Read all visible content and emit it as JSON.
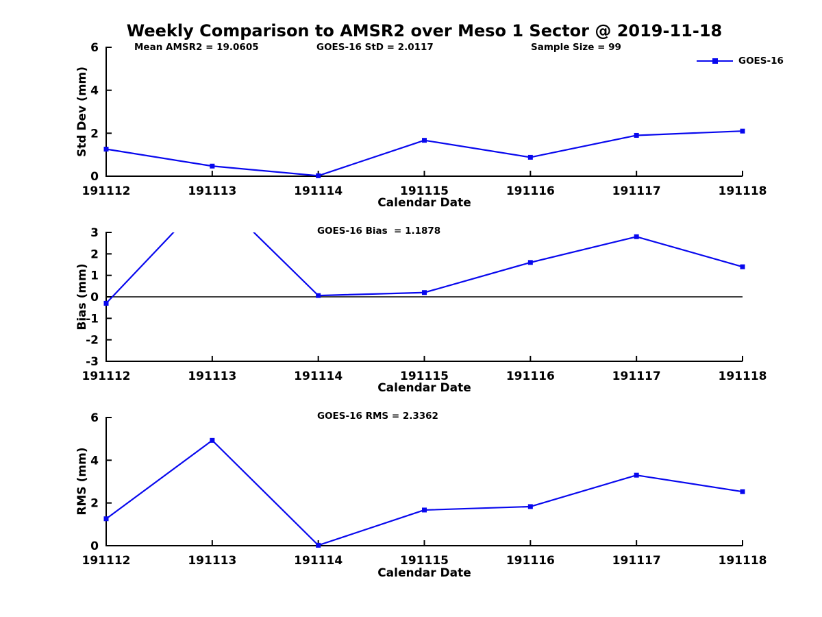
{
  "title": "Weekly Comparison to AMSR2 over Meso 1 Sector @ 2019-11-18",
  "legend": {
    "label": "GOES-16",
    "color": "#0808ee",
    "position": "top-right-inside"
  },
  "axis_color": "#000000",
  "chart_data": [
    {
      "type": "line",
      "name": "std-dev-panel",
      "annotations": [
        "Mean AMSR2 = 19.0605",
        "GOES-16 StD = 2.0117",
        "Sample Size = 99"
      ],
      "categories": [
        "191112",
        "191113",
        "191114",
        "191115",
        "191116",
        "191117",
        "191118"
      ],
      "series": [
        {
          "name": "GOES-16",
          "values": [
            1.26,
            0.47,
            0.02,
            1.67,
            0.88,
            1.9,
            2.1
          ]
        }
      ],
      "xlabel": "Calendar Date",
      "ylabel": "Std Dev (mm)",
      "ylim": [
        0,
        6
      ],
      "yticks": [
        0,
        2,
        4,
        6
      ],
      "grid": false,
      "zero_line": false,
      "marker": "square",
      "line_color": "#0808ee"
    },
    {
      "type": "line",
      "name": "bias-panel",
      "annotations": [
        "GOES-16 Bias  = 1.1878"
      ],
      "categories": [
        "191112",
        "191113",
        "191114",
        "191115",
        "191116",
        "191117",
        "191118"
      ],
      "series": [
        {
          "name": "GOES-16",
          "values": [
            -0.3,
            4.9,
            0.06,
            0.2,
            1.6,
            2.8,
            1.4
          ]
        }
      ],
      "note": "value at 191113 is off-scale high and the line is clipped at the top of the axes",
      "xlabel": "Calendar Date",
      "ylabel": "Bias (mm)",
      "ylim": [
        -3,
        3
      ],
      "yticks": [
        -3,
        -2,
        -1,
        0,
        1,
        2,
        3
      ],
      "grid": false,
      "zero_line": true,
      "marker": "square",
      "line_color": "#0808ee"
    },
    {
      "type": "line",
      "name": "rms-panel",
      "annotations": [
        "GOES-16 RMS = 2.3362"
      ],
      "categories": [
        "191112",
        "191113",
        "191114",
        "191115",
        "191116",
        "191117",
        "191118"
      ],
      "series": [
        {
          "name": "GOES-16",
          "values": [
            1.26,
            4.93,
            0.02,
            1.67,
            1.83,
            3.3,
            2.53
          ]
        }
      ],
      "xlabel": "Calendar Date",
      "ylabel": "RMS (mm)",
      "ylim": [
        0,
        6
      ],
      "yticks": [
        0,
        2,
        4,
        6
      ],
      "grid": false,
      "zero_line": false,
      "marker": "square",
      "line_color": "#0808ee"
    }
  ]
}
